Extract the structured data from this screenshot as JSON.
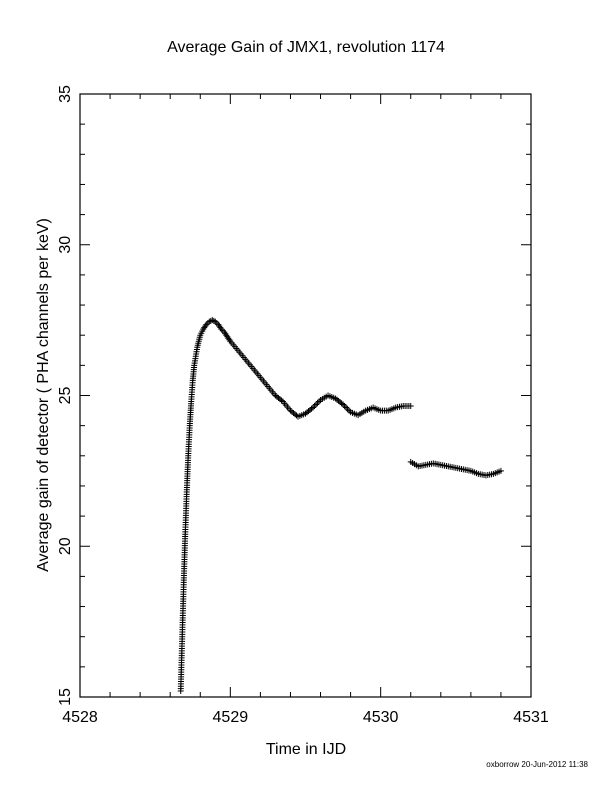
{
  "chart_data": {
    "type": "scatter",
    "title": "Average Gain of JMX1, revolution 1174",
    "xlabel": "Time in IJD",
    "ylabel": "Average gain of detector ( PHA channels per keV)",
    "xlim": [
      4528,
      4531
    ],
    "ylim": [
      15,
      35
    ],
    "x_ticks": [
      "4528",
      "4529",
      "4530",
      "4531"
    ],
    "y_ticks": [
      "15",
      "20",
      "25",
      "30",
      "35"
    ],
    "marker": "+",
    "grid": false,
    "legend": "none",
    "colors": {
      "axis": "#000000",
      "marker": "#000000"
    },
    "segments": [
      {
        "x": [
          4528.67,
          4528.68,
          4528.69,
          4528.7,
          4528.71,
          4528.72,
          4528.73,
          4528.74,
          4528.75,
          4528.76,
          4528.78,
          4528.8,
          4528.82,
          4528.84,
          4528.86,
          4528.88,
          4528.9,
          4528.92,
          4528.94,
          4528.96,
          4528.98,
          4529.0,
          4529.05,
          4529.1,
          4529.15,
          4529.2,
          4529.25,
          4529.3,
          4529.35,
          4529.4,
          4529.45,
          4529.5,
          4529.55,
          4529.6,
          4529.65,
          4529.7,
          4529.75,
          4529.8,
          4529.85,
          4529.9,
          4529.95,
          4530.0,
          4530.05,
          4530.1,
          4530.15,
          4530.2
        ],
        "y": [
          15.2,
          17.0,
          18.8,
          20.4,
          21.8,
          23.0,
          24.0,
          24.8,
          25.5,
          26.0,
          26.6,
          27.0,
          27.2,
          27.35,
          27.45,
          27.5,
          27.45,
          27.35,
          27.2,
          27.1,
          26.95,
          26.8,
          26.5,
          26.2,
          25.9,
          25.6,
          25.3,
          25.0,
          24.8,
          24.5,
          24.3,
          24.4,
          24.6,
          24.85,
          25.0,
          24.9,
          24.7,
          24.45,
          24.35,
          24.5,
          24.6,
          24.5,
          24.5,
          24.6,
          24.65,
          24.65
        ]
      },
      {
        "x": [
          4530.2,
          4530.25,
          4530.3,
          4530.35,
          4530.4,
          4530.45,
          4530.5,
          4530.55,
          4530.6,
          4530.65,
          4530.7,
          4530.75,
          4530.8
        ],
        "y": [
          22.8,
          22.65,
          22.7,
          22.75,
          22.7,
          22.65,
          22.6,
          22.55,
          22.5,
          22.4,
          22.35,
          22.4,
          22.5
        ]
      }
    ]
  },
  "footer_text": "oxborrow 20-Jun-2012 11:38"
}
